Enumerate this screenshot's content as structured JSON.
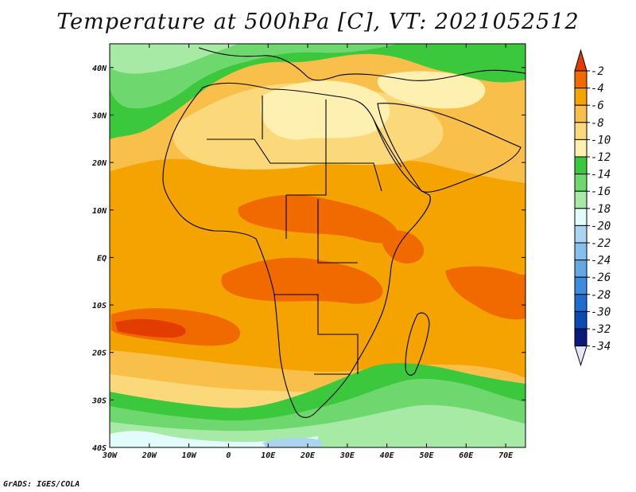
{
  "title": "Temperature at 500hPa [C], VT: 2021052512",
  "credit": "GrADS: IGES/COLA",
  "map": {
    "variable": "Temperature at 500hPa",
    "units": "C",
    "valid_time": "2021052512",
    "lon_range": [
      -30,
      75
    ],
    "lat_range": [
      -40,
      45
    ],
    "lon_ticks": [
      {
        "value": -30,
        "label": "30W"
      },
      {
        "value": -20,
        "label": "20W"
      },
      {
        "value": -10,
        "label": "10W"
      },
      {
        "value": 0,
        "label": "0"
      },
      {
        "value": 10,
        "label": "10E"
      },
      {
        "value": 20,
        "label": "20E"
      },
      {
        "value": 30,
        "label": "30E"
      },
      {
        "value": 40,
        "label": "40E"
      },
      {
        "value": 50,
        "label": "50E"
      },
      {
        "value": 60,
        "label": "60E"
      },
      {
        "value": 70,
        "label": "70E"
      }
    ],
    "lat_ticks": [
      {
        "value": 40,
        "label": "40N"
      },
      {
        "value": 30,
        "label": "30N"
      },
      {
        "value": 20,
        "label": "20N"
      },
      {
        "value": 10,
        "label": "10N"
      },
      {
        "value": 0,
        "label": "EQ"
      },
      {
        "value": -10,
        "label": "10S"
      },
      {
        "value": -20,
        "label": "20S"
      },
      {
        "value": -30,
        "label": "30S"
      },
      {
        "value": -40,
        "label": "40S"
      }
    ]
  },
  "colorbar": {
    "labels": [
      "-2",
      "-4",
      "-6",
      "-8",
      "-10",
      "-12",
      "-14",
      "-16",
      "-18",
      "-20",
      "-22",
      "-24",
      "-26",
      "-28",
      "-30",
      "-32",
      "-34"
    ],
    "colors": [
      "#e23c00",
      "#f06a00",
      "#f5a300",
      "#f8c04a",
      "#fbd97a",
      "#fdf0b0",
      "#3cc83c",
      "#6ed86e",
      "#a6eaa6",
      "#e2fbfb",
      "#aad4f0",
      "#86c0ec",
      "#62a8e4",
      "#3c8ce0",
      "#1e6cd0",
      "#0a4ab4",
      "#0a1a78"
    ]
  },
  "fields": {
    "ocean": "#f5a300",
    "warm_core": "#f06a00",
    "hot": "#e23c00",
    "sahara": "#fbd97a",
    "pale": "#fdf0b0",
    "cold1": "#3cc83c",
    "cold2": "#6ed86e",
    "cold3": "#a6eaa6",
    "cold4": "#e2fbfb",
    "cold5": "#aad4f0"
  }
}
